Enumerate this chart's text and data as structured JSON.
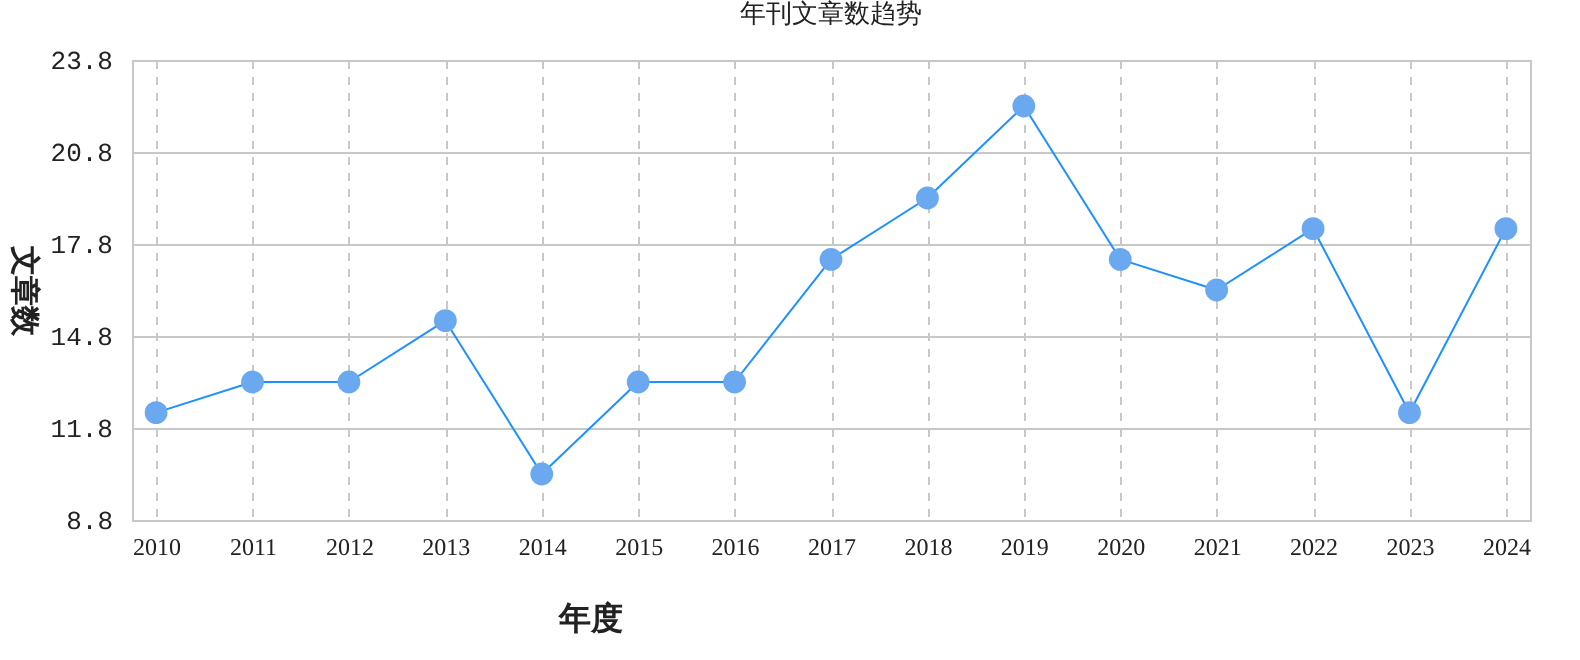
{
  "chart_data": {
    "type": "line",
    "title": "年刊文章数趋势",
    "xlabel": "年度",
    "ylabel": "文章数",
    "categories": [
      "2010",
      "2011",
      "2012",
      "2013",
      "2014",
      "2015",
      "2016",
      "2017",
      "2018",
      "2019",
      "2020",
      "2021",
      "2022",
      "2023",
      "2024"
    ],
    "series": [
      {
        "color": "#1e90ff",
        "values": [
          12.3,
          13.3,
          13.3,
          15.3,
          10.3,
          13.3,
          13.3,
          17.3,
          19.3,
          22.3,
          17.3,
          16.3,
          18.3,
          12.3,
          18.3
        ]
      }
    ],
    "ylim": [
      8.8,
      23.8
    ],
    "yticks": [
      8.8,
      11.8,
      14.8,
      17.8,
      20.8,
      23.8
    ],
    "grid": true,
    "marker": "circle",
    "line_style": "solid"
  }
}
